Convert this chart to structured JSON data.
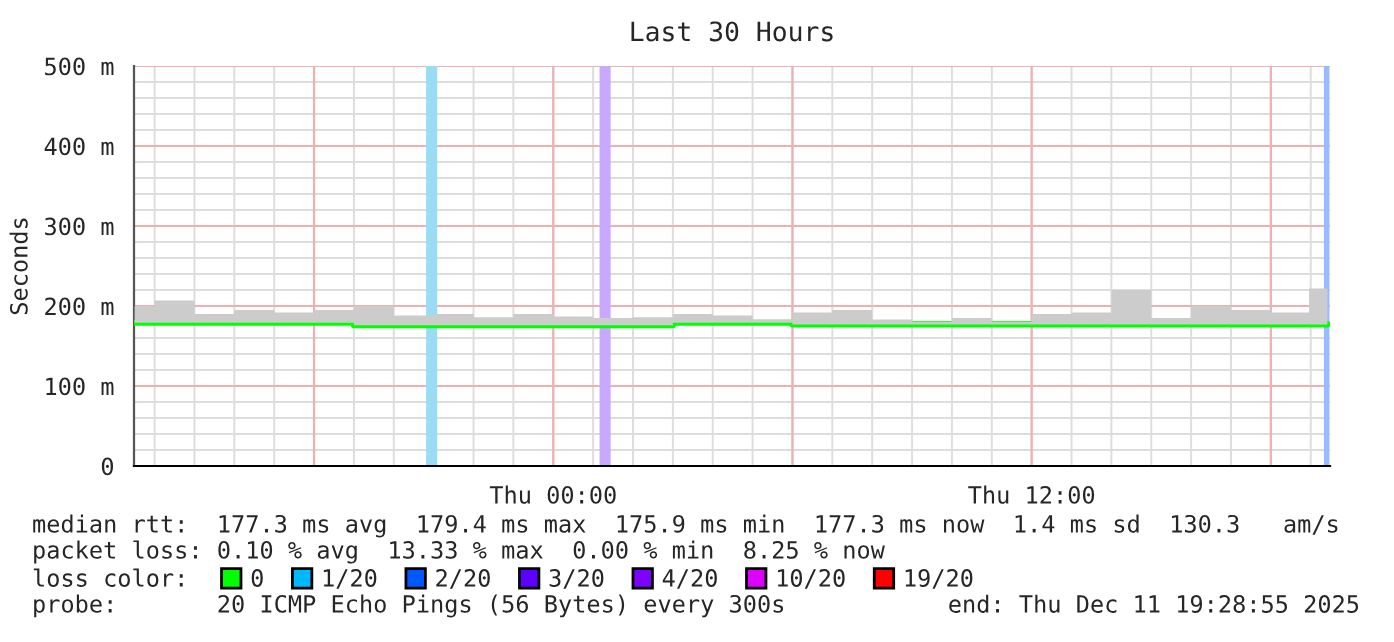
{
  "chart_data": {
    "type": "line",
    "title": "Last 30 Hours",
    "ylabel": "Seconds",
    "x": [
      "2025-12-10T13:30",
      "2025-12-10T14:30",
      "2025-12-10T15:30",
      "2025-12-10T16:30",
      "2025-12-10T17:30",
      "2025-12-10T18:30",
      "2025-12-10T19:30",
      "2025-12-10T20:30",
      "2025-12-10T21:30",
      "2025-12-10T22:30",
      "2025-12-10T23:30",
      "2025-12-11T00:30",
      "2025-12-11T01:30",
      "2025-12-11T02:30",
      "2025-12-11T03:30",
      "2025-12-11T04:30",
      "2025-12-11T05:30",
      "2025-12-11T06:30",
      "2025-12-11T07:30",
      "2025-12-11T08:30",
      "2025-12-11T09:30",
      "2025-12-11T10:30",
      "2025-12-11T11:30",
      "2025-12-11T12:30",
      "2025-12-11T13:30",
      "2025-12-11T14:30",
      "2025-12-11T15:30",
      "2025-12-11T16:30",
      "2025-12-11T17:30",
      "2025-12-11T18:30",
      "2025-12-11T19:25"
    ],
    "series": [
      {
        "name": "0",
        "color": "#00ff00",
        "values": [
          179,
          179,
          179,
          179,
          179,
          179,
          176,
          176,
          176,
          176,
          176,
          176,
          176,
          176,
          179,
          179,
          179,
          177,
          177,
          177,
          177,
          177,
          177,
          177,
          177,
          177,
          177,
          177,
          177,
          177,
          177
        ],
        "lower": [
          179,
          179,
          179,
          179,
          179,
          179,
          176,
          176,
          176,
          176,
          176,
          176,
          176,
          176,
          179,
          179,
          179,
          177,
          177,
          177,
          177,
          177,
          177,
          177,
          177,
          177,
          177,
          177,
          177,
          177,
          177
        ],
        "upper": [
          200,
          207,
          190,
          195,
          192,
          195,
          200,
          188,
          190,
          186,
          190,
          187,
          185,
          186,
          190,
          188,
          183,
          192,
          195,
          183,
          180,
          185,
          180,
          190,
          192,
          220,
          185,
          200,
          195,
          192,
          222
        ]
      },
      {
        "name": "1/20",
        "color": "#00b8ff",
        "values": [
          null,
          null,
          null,
          null,
          null,
          null,
          null,
          null,
          null,
          null,
          null,
          null,
          null,
          null,
          null,
          null,
          null,
          null,
          null,
          null,
          null,
          null,
          null,
          null,
          null,
          null,
          null,
          null,
          null,
          null,
          null
        ]
      },
      {
        "name": "2/20",
        "color": "#0059ff",
        "values": [
          null,
          null,
          null,
          null,
          null,
          null,
          null,
          null,
          null,
          null,
          null,
          null,
          null,
          null,
          null,
          null,
          null,
          null,
          null,
          null,
          null,
          null,
          null,
          null,
          null,
          null,
          null,
          null,
          null,
          null,
          null
        ]
      },
      {
        "name": "3/20",
        "color": "#5e00ff",
        "values": [
          null,
          null,
          null,
          null,
          null,
          null,
          null,
          null,
          null,
          null,
          null,
          null,
          null,
          null,
          null,
          null,
          null,
          null,
          null,
          null,
          null,
          null,
          null,
          null,
          null,
          null,
          null,
          null,
          null,
          null,
          null
        ]
      },
      {
        "name": "4/20",
        "color": "#7e00ff",
        "values": [
          null,
          null,
          null,
          null,
          null,
          null,
          null,
          null,
          null,
          null,
          null,
          null,
          null,
          null,
          null,
          null,
          null,
          null,
          null,
          null,
          null,
          null,
          null,
          null,
          null,
          null,
          null,
          null,
          null,
          null,
          null
        ]
      },
      {
        "name": "10/20",
        "color": "#dd00ff",
        "values": [
          null,
          null,
          null,
          null,
          null,
          null,
          null,
          null,
          null,
          null,
          null,
          null,
          null,
          null,
          null,
          null,
          null,
          null,
          null,
          null,
          null,
          null,
          null,
          null,
          null,
          null,
          null,
          null,
          null,
          null,
          null
        ]
      },
      {
        "name": "19/20",
        "color": "#ff0000",
        "values": [
          null,
          null,
          null,
          null,
          null,
          null,
          null,
          null,
          null,
          null,
          null,
          null,
          null,
          null,
          null,
          null,
          null,
          null,
          null,
          null,
          null,
          null,
          null,
          null,
          null,
          null,
          null,
          null,
          null,
          null,
          null
        ]
      }
    ],
    "xlim": [
      "2025-12-10T13:29",
      "2025-12-11T19:29"
    ],
    "xticks": [
      {
        "value": "2025-12-10T18:00",
        "label": null
      },
      {
        "value": "2025-12-11T00:00",
        "label": "Thu 00:00"
      },
      {
        "value": "2025-12-11T06:00",
        "label": null
      },
      {
        "value": "2025-12-11T12:00",
        "label": "Thu 12:00"
      },
      {
        "value": "2025-12-11T18:00",
        "label": null
      }
    ],
    "ylim": [
      0,
      500
    ],
    "yticks": [
      0,
      {
        "value": 100,
        "label": "100 m"
      },
      {
        "value": 200,
        "label": "200 m"
      },
      {
        "value": 300,
        "label": "300 m"
      },
      {
        "value": 400,
        "label": "400 m"
      },
      {
        "value": 500,
        "label": "500 m"
      }
    ],
    "ref_lines": [
      {
        "axis": "x",
        "value": "2025-12-10T20:57",
        "color": "#99ddf5"
      },
      {
        "axis": "x",
        "value": "2025-12-11T01:18",
        "color": "#c9a9ff"
      },
      {
        "axis": "x",
        "value": "2025-12-11T19:24",
        "color": "#99bbff"
      }
    ],
    "grid": true,
    "legend": "bottom",
    "annotations": [
      "median rtt:  177.3 ms avg  179.4 ms max  175.9 ms min  177.3 ms now  1.4 ms sd  130.3   am/s",
      "packet loss: 0.10 % avg  13.33 % max  0.00 % min  8.25 % now",
      "loss color:",
      "probe:       20 ICMP Echo Pings (56 Bytes) every 300s",
      "end: Thu Dec 11 19:28:55 2025"
    ]
  }
}
